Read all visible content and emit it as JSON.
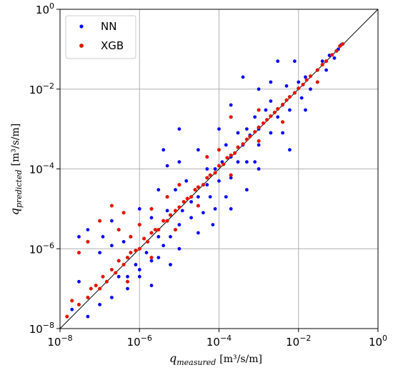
{
  "chart_data": {
    "type": "scatter",
    "title": "",
    "xscale": "log",
    "yscale": "log",
    "xlim": [
      1e-08,
      1
    ],
    "ylim": [
      1e-08,
      1
    ],
    "grid": true,
    "legend_position": "top-left",
    "reference_line": "y = x",
    "xlabel": {
      "symbol": "q",
      "subscript": "measured",
      "unit": "[m³/s/m]"
    },
    "ylabel": {
      "symbol": "q",
      "subscript": "predicted",
      "unit": "[m³/s/m]"
    },
    "x_ticks": [
      {
        "value": 1e-08,
        "base": "10",
        "exp": "−8"
      },
      {
        "value": 1e-06,
        "base": "10",
        "exp": "−6"
      },
      {
        "value": 0.0001,
        "base": "10",
        "exp": "−4"
      },
      {
        "value": 0.01,
        "base": "10",
        "exp": "−2"
      },
      {
        "value": 1,
        "base": "10",
        "exp": "0"
      }
    ],
    "y_ticks": [
      {
        "value": 1e-08,
        "base": "10",
        "exp": "−8"
      },
      {
        "value": 1e-06,
        "base": "10",
        "exp": "−6"
      },
      {
        "value": 0.0001,
        "base": "10",
        "exp": "−4"
      },
      {
        "value": 0.01,
        "base": "10",
        "exp": "−2"
      },
      {
        "value": 1,
        "base": "10",
        "exp": "0"
      }
    ],
    "series": [
      {
        "name": "NN",
        "color": "#0000ff",
        "points": [
          [
            2e-08,
            3e-08
          ],
          [
            3e-08,
            1.5e-07
          ],
          [
            5e-08,
            2e-08
          ],
          [
            1e-07,
            8e-07
          ],
          [
            1e-07,
            4e-08
          ],
          [
            2e-07,
            5e-06
          ],
          [
            2e-07,
            6e-08
          ],
          [
            3e-07,
            2e-07
          ],
          [
            4e-07,
            1.5e-06
          ],
          [
            5e-07,
            2e-07
          ],
          [
            6e-07,
            2e-06
          ],
          [
            8e-07,
            4e-07
          ],
          [
            1e-06,
            1e-05
          ],
          [
            1e-06,
            3e-07
          ],
          [
            1.5e-06,
            8e-07
          ],
          [
            2e-06,
            6e-06
          ],
          [
            2e-06,
            5e-07
          ],
          [
            3e-06,
            2e-06
          ],
          [
            3e-06,
            3e-05
          ],
          [
            4e-06,
            1.2e-06
          ],
          [
            5e-06,
            9e-06
          ],
          [
            6e-06,
            2e-06
          ],
          [
            8e-06,
            3e-05
          ],
          [
            1e-05,
            4e-06
          ],
          [
            1e-05,
            0.00015
          ],
          [
            1.2e-05,
            9e-06
          ],
          [
            1.5e-05,
            5e-05
          ],
          [
            2e-05,
            6e-06
          ],
          [
            2e-05,
            1.5e-05
          ],
          [
            3e-05,
            2e-05
          ],
          [
            3e-05,
            0.0003
          ],
          [
            4e-05,
            8e-06
          ],
          [
            5e-05,
            4e-05
          ],
          [
            5e-05,
            0.0001
          ],
          [
            6e-05,
            2e-05
          ],
          [
            8e-05,
            0.0001
          ],
          [
            0.0001,
            5e-05
          ],
          [
            0.0001,
            0.001
          ],
          [
            0.00012,
            0.00015
          ],
          [
            0.00015,
            0.0004
          ],
          [
            0.0002,
            6e-05
          ],
          [
            0.0002,
            0.0002
          ],
          [
            0.0003,
            0.0008
          ],
          [
            0.0003,
            0.00015
          ],
          [
            0.0004,
            0.0004
          ],
          [
            0.0005,
            0.001
          ],
          [
            0.0005,
            0.00015
          ],
          [
            0.0006,
            0.0007
          ],
          [
            0.0008,
            0.002
          ],
          [
            0.001,
            0.0004
          ],
          [
            0.001,
            0.001
          ],
          [
            0.0015,
            0.003
          ],
          [
            0.002,
            0.0008
          ],
          [
            0.002,
            0.005
          ],
          [
            0.003,
            0.002
          ],
          [
            0.004,
            0.004
          ],
          [
            0.005,
            0.012
          ],
          [
            0.006,
            0.003
          ],
          [
            0.008,
            0.008
          ],
          [
            0.01,
            0.015
          ],
          [
            0.012,
            0.006
          ],
          [
            0.015,
            0.02
          ],
          [
            0.02,
            0.01
          ],
          [
            0.03,
            0.03
          ],
          [
            0.04,
            0.05
          ],
          [
            0.05,
            0.03
          ],
          [
            0.06,
            0.07
          ],
          [
            0.08,
            0.06
          ],
          [
            0.1,
            0.1
          ],
          [
            0.12,
            0.13
          ],
          [
            3e-08,
            2e-06
          ],
          [
            5e-08,
            3e-06
          ],
          [
            1.2e-07,
            2e-06
          ],
          [
            2e-07,
            1.2e-06
          ],
          [
            3e-06,
            6e-07
          ],
          [
            5e-06,
            0.00012
          ],
          [
            1e-05,
            0.001
          ],
          [
            4e-06,
            0.0003
          ],
          [
            7e-05,
            4e-06
          ],
          [
            0.0002,
            1e-05
          ],
          [
            0.0005,
            3e-05
          ],
          [
            0.001,
            0.0001
          ],
          [
            0.0002,
            0.004
          ],
          [
            0.0004,
            0.02
          ],
          [
            0.006,
            0.0003
          ],
          [
            0.002,
            0.015
          ],
          [
            0.008,
            0.05
          ],
          [
            0.001,
            0.01
          ],
          [
            0.015,
            0.003
          ],
          [
            0.003,
            0.05
          ],
          [
            1e-06,
            2e-07
          ],
          [
            5e-07,
            1e-07
          ],
          [
            2e-06,
            1.2e-07
          ],
          [
            6e-06,
            4e-07
          ],
          [
            1e-05,
            1e-06
          ],
          [
            3e-05,
            2.5e-06
          ],
          [
            8e-05,
            1e-05
          ],
          [
            0.00015,
            2e-05
          ],
          [
            0.0008,
            0.00015
          ],
          [
            0.004,
            0.0008
          ]
        ]
      },
      {
        "name": "XGB",
        "color": "#ff0000",
        "marker_edge": "#a05a1c",
        "points": [
          [
            1.5e-08,
            2e-08
          ],
          [
            2e-08,
            5e-08
          ],
          [
            3e-08,
            4e-08
          ],
          [
            5e-08,
            6e-08
          ],
          [
            6e-08,
            1e-07
          ],
          [
            8e-08,
            1.2e-07
          ],
          [
            1e-07,
            1e-07
          ],
          [
            1.2e-07,
            2e-07
          ],
          [
            1.5e-07,
            1.5e-07
          ],
          [
            2e-07,
            3e-07
          ],
          [
            2.5e-07,
            2.5e-07
          ],
          [
            3e-07,
            5e-07
          ],
          [
            4e-07,
            4e-07
          ],
          [
            5e-07,
            6e-07
          ],
          [
            6e-07,
            8e-07
          ],
          [
            8e-07,
            9e-07
          ],
          [
            1e-06,
            1e-06
          ],
          [
            1.3e-06,
            1.8e-06
          ],
          [
            1.6e-06,
            1.5e-06
          ],
          [
            2e-06,
            2.5e-06
          ],
          [
            2.5e-06,
            3e-06
          ],
          [
            3e-06,
            3e-06
          ],
          [
            4e-06,
            5e-06
          ],
          [
            5e-06,
            5e-06
          ],
          [
            6e-06,
            7e-06
          ],
          [
            8e-06,
            9e-06
          ],
          [
            1e-05,
            1.1e-05
          ],
          [
            1.3e-05,
            1.5e-05
          ],
          [
            1.6e-05,
            1.8e-05
          ],
          [
            2e-05,
            2e-05
          ],
          [
            2.5e-05,
            3e-05
          ],
          [
            3e-05,
            3.5e-05
          ],
          [
            4e-05,
            4e-05
          ],
          [
            5e-05,
            6e-05
          ],
          [
            6e-05,
            7e-05
          ],
          [
            8e-05,
            8e-05
          ],
          [
            0.0001,
            0.00012
          ],
          [
            0.00013,
            0.00013
          ],
          [
            0.00016,
            0.00019
          ],
          [
            0.0002,
            0.00022
          ],
          [
            0.00025,
            0.00025
          ],
          [
            0.0003,
            0.00035
          ],
          [
            0.0004,
            0.00042
          ],
          [
            0.0005,
            0.00055
          ],
          [
            0.0006,
            0.00065
          ],
          [
            0.0008,
            0.00085
          ],
          [
            0.001,
            0.0011
          ],
          [
            0.0013,
            0.0014
          ],
          [
            0.0016,
            0.0017
          ],
          [
            0.002,
            0.0021
          ],
          [
            0.0025,
            0.0026
          ],
          [
            0.003,
            0.0032
          ],
          [
            0.004,
            0.0041
          ],
          [
            0.005,
            0.0053
          ],
          [
            0.006,
            0.0064
          ],
          [
            0.008,
            0.0081
          ],
          [
            0.01,
            0.0105
          ],
          [
            0.013,
            0.013
          ],
          [
            0.016,
            0.017
          ],
          [
            0.02,
            0.021
          ],
          [
            0.03,
            0.03
          ],
          [
            0.04,
            0.041
          ],
          [
            0.05,
            0.05
          ],
          [
            0.07,
            0.072
          ],
          [
            0.09,
            0.09
          ],
          [
            0.11,
            0.12
          ],
          [
            0.13,
            0.135
          ],
          [
            3e-08,
            8e-07
          ],
          [
            5e-08,
            1.5e-06
          ],
          [
            1e-07,
            5e-06
          ],
          [
            2e-07,
            1.2e-05
          ],
          [
            3e-07,
            3e-06
          ],
          [
            4e-07,
            8e-06
          ],
          [
            6e-07,
            2e-06
          ],
          [
            1e-06,
            4e-06
          ],
          [
            2e-06,
            1e-05
          ],
          [
            5e-06,
            2e-05
          ],
          [
            1e-05,
            4e-05
          ],
          [
            5e-05,
            0.0002
          ],
          [
            0.0001,
            0.0003
          ],
          [
            5e-07,
            1.5e-07
          ],
          [
            2e-06,
            6e-07
          ],
          [
            8e-06,
            3e-06
          ],
          [
            3e-05,
            1.2e-05
          ],
          [
            0.0002,
            7e-05
          ],
          [
            0.001,
            0.0005
          ],
          [
            0.0002,
            0.002
          ],
          [
            0.001,
            0.003
          ],
          [
            0.004,
            0.0015
          ],
          [
            0.03,
            0.015
          ]
        ]
      }
    ]
  }
}
